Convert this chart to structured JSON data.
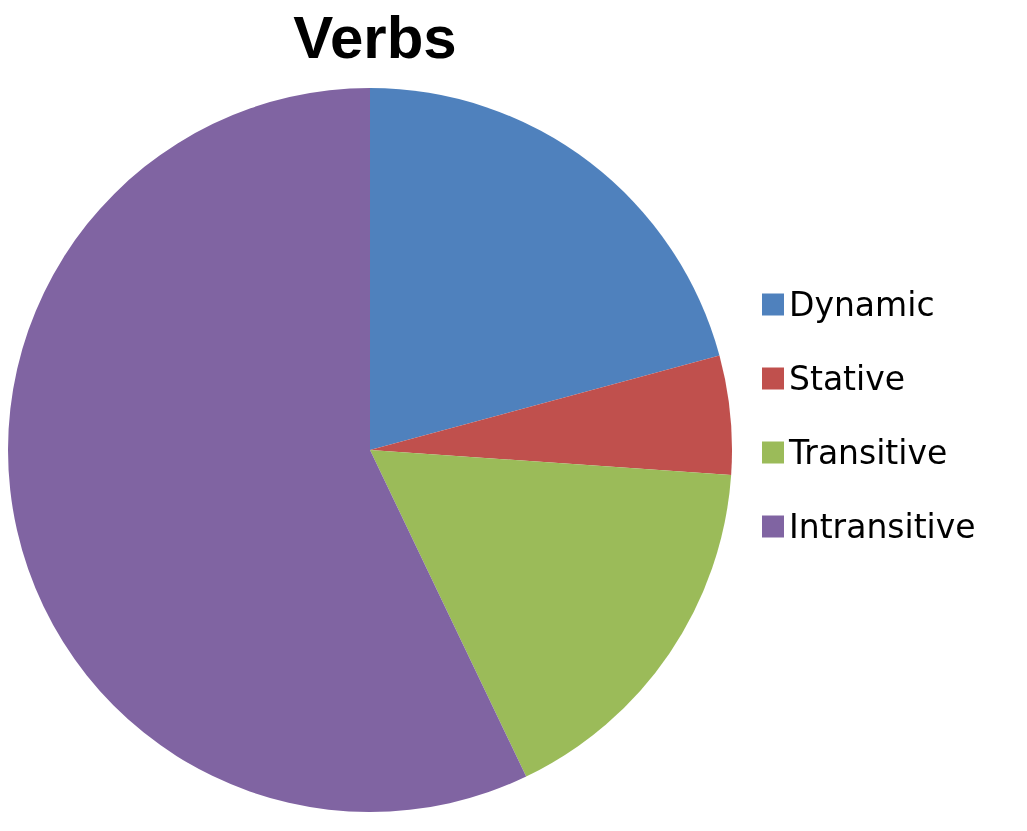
{
  "chart_data": {
    "type": "pie",
    "title": "Verbs",
    "categories": [
      "Dynamic",
      "Stative",
      "Transitive",
      "Intransitive"
    ],
    "values": [
      20.8,
      5.3,
      16.8,
      57.1
    ],
    "colors": [
      "#4f81bd",
      "#c0504d",
      "#9bbb59",
      "#8064a2"
    ],
    "legend": "right"
  }
}
